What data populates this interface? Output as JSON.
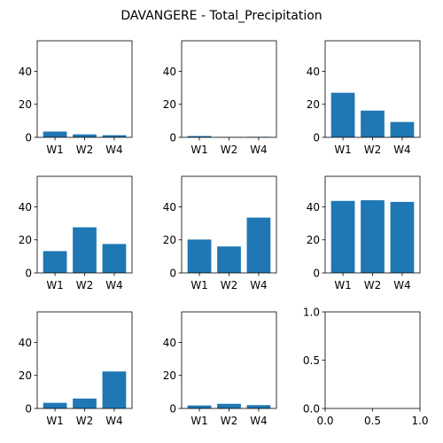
{
  "suptitle": "DAVANGERE - Total_Precipitation",
  "colors": {
    "bar": "#1f77b4",
    "axis": "#000000",
    "background": "#ffffff"
  },
  "chart_data": [
    {
      "type": "bar",
      "categories": [
        "W1",
        "W2",
        "W4"
      ],
      "values": [
        3.5,
        1.8,
        1.3
      ],
      "ylim": [
        0,
        58.5
      ],
      "yticks": [
        0,
        20,
        40
      ]
    },
    {
      "type": "bar",
      "categories": [
        "W1",
        "W2",
        "W4"
      ],
      "values": [
        0.8,
        0.2,
        0.3
      ],
      "ylim": [
        0,
        58.5
      ],
      "yticks": [
        0,
        20,
        40
      ]
    },
    {
      "type": "bar",
      "categories": [
        "W1",
        "W2",
        "W4"
      ],
      "values": [
        27.0,
        16.2,
        9.3
      ],
      "ylim": [
        0,
        58.5
      ],
      "yticks": [
        0,
        20,
        40
      ]
    },
    {
      "type": "bar",
      "categories": [
        "W1",
        "W2",
        "W4"
      ],
      "values": [
        13.2,
        27.6,
        17.5
      ],
      "ylim": [
        0,
        58.5
      ],
      "yticks": [
        0,
        20,
        40
      ]
    },
    {
      "type": "bar",
      "categories": [
        "W1",
        "W2",
        "W4"
      ],
      "values": [
        20.2,
        16.0,
        33.5
      ],
      "ylim": [
        0,
        58.5
      ],
      "yticks": [
        0,
        20,
        40
      ]
    },
    {
      "type": "bar",
      "categories": [
        "W1",
        "W2",
        "W4"
      ],
      "values": [
        43.6,
        44.0,
        43.0
      ],
      "ylim": [
        0,
        58.5
      ],
      "yticks": [
        0,
        20,
        40
      ]
    },
    {
      "type": "bar",
      "categories": [
        "W1",
        "W2",
        "W4"
      ],
      "values": [
        3.4,
        6.0,
        22.4
      ],
      "ylim": [
        0,
        58.5
      ],
      "yticks": [
        0,
        20,
        40
      ]
    },
    {
      "type": "bar",
      "categories": [
        "W1",
        "W2",
        "W4"
      ],
      "values": [
        1.8,
        2.8,
        2.0
      ],
      "ylim": [
        0,
        58.5
      ],
      "yticks": [
        0,
        20,
        40
      ]
    },
    {
      "type": "empty",
      "xlim": [
        0,
        1
      ],
      "ylim": [
        0,
        1
      ],
      "xticks": [
        "0.0",
        "0.5",
        "1.0"
      ],
      "yticks": [
        "0.0",
        "0.5",
        "1.0"
      ]
    }
  ]
}
